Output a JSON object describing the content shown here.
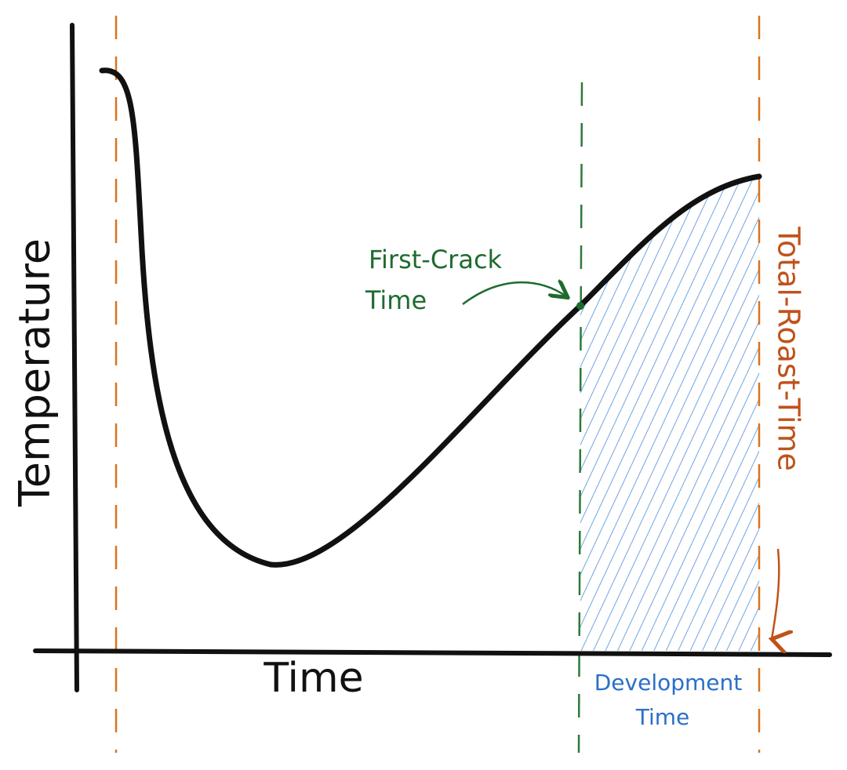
{
  "axes": {
    "y_label": "Temperature",
    "x_label": "Time"
  },
  "annotations": {
    "first_crack": [
      "First-Crack",
      "Time"
    ],
    "total_roast": "Total-Roast-Time",
    "development": [
      "Development",
      "Time"
    ]
  }
}
